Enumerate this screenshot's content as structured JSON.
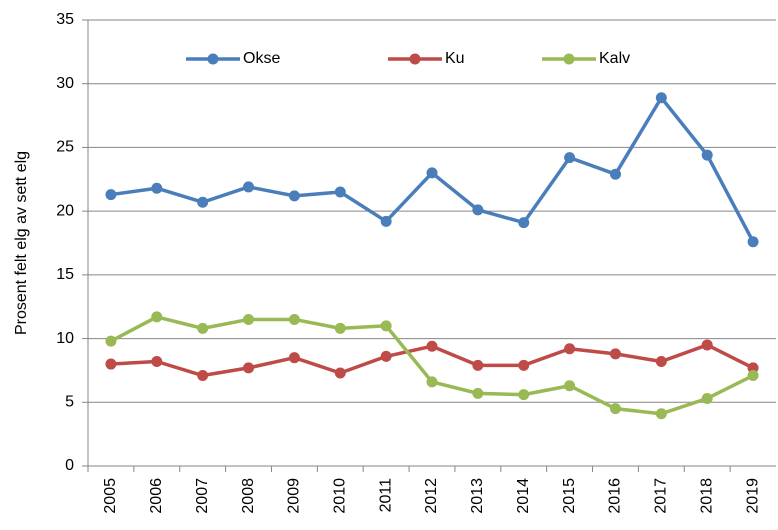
{
  "chart_data": {
    "type": "line",
    "y_label": "Prosent felt elg av sett elg",
    "categories": [
      "2005",
      "2006",
      "2007",
      "2008",
      "2009",
      "2010",
      "2011",
      "2012",
      "2013",
      "2014",
      "2015",
      "2016",
      "2017",
      "2018",
      "2019"
    ],
    "series": [
      {
        "name": "Okse",
        "color": "#4a7ebb",
        "values": [
          21.3,
          21.8,
          20.7,
          21.9,
          21.2,
          21.5,
          19.2,
          23.0,
          20.1,
          19.1,
          24.2,
          22.9,
          28.9,
          24.4,
          17.6
        ]
      },
      {
        "name": "Ku",
        "color": "#be4b48",
        "values": [
          8.0,
          8.2,
          7.1,
          7.7,
          8.5,
          7.3,
          8.6,
          9.4,
          7.9,
          7.9,
          9.2,
          8.8,
          8.2,
          9.5,
          7.7
        ]
      },
      {
        "name": "Kalv",
        "color": "#98b954",
        "values": [
          9.8,
          11.7,
          10.8,
          11.5,
          11.5,
          10.8,
          11.0,
          6.6,
          5.7,
          5.6,
          6.3,
          4.5,
          4.1,
          5.3,
          7.1
        ]
      }
    ],
    "ylim": [
      0,
      35
    ],
    "yticks": [
      0,
      5,
      10,
      15,
      20,
      25,
      30,
      35
    ],
    "grid": true,
    "legend": "top"
  }
}
